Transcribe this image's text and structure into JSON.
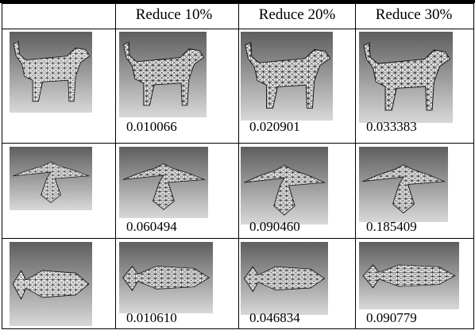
{
  "table": {
    "header": [
      "Reduce 10%",
      "Reduce 20%",
      "Reduce 30%"
    ],
    "rows": [
      {
        "values": [
          "0.010066",
          "0.020901",
          "0.033383"
        ]
      },
      {
        "values": [
          "0.060494",
          "0.090460",
          "0.185409"
        ]
      },
      {
        "values": [
          "0.010610",
          "0.046834",
          "0.090779"
        ]
      }
    ]
  }
}
